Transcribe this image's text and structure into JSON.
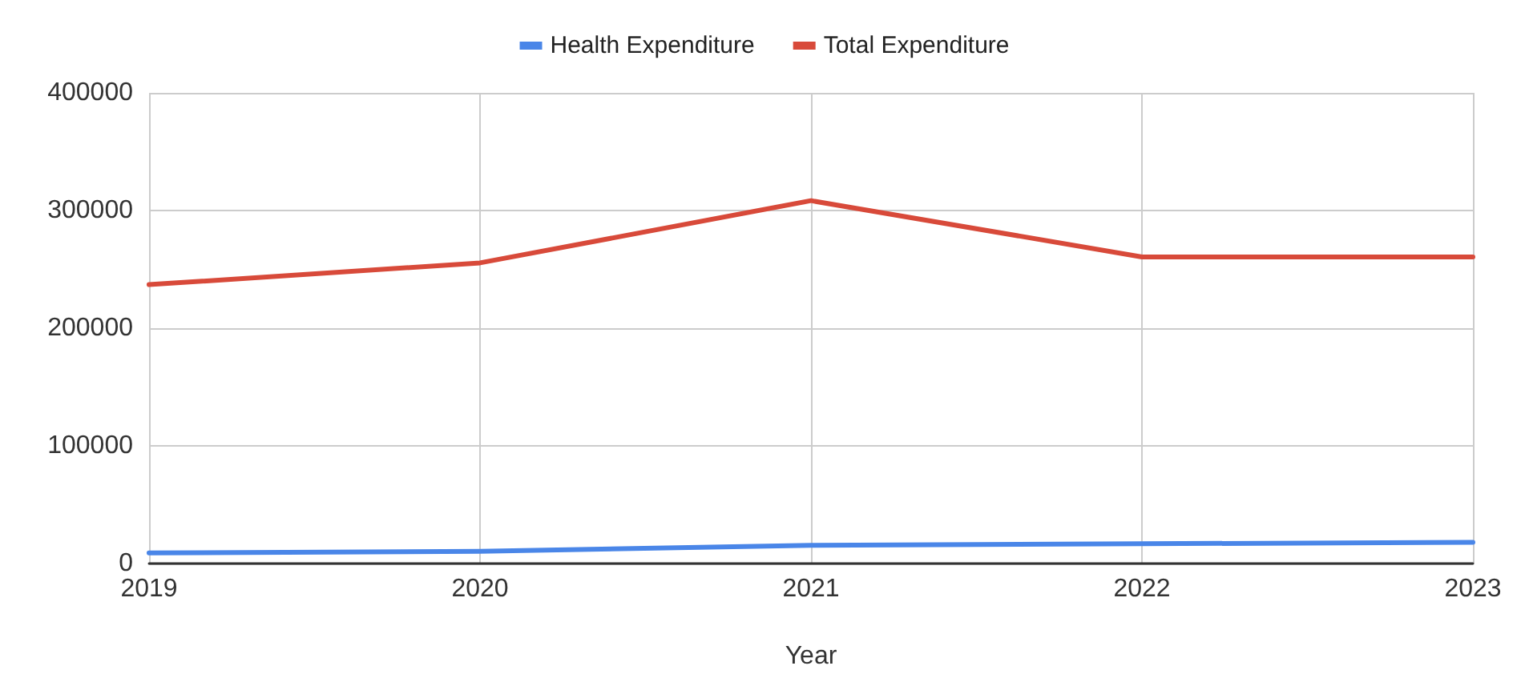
{
  "chart_data": {
    "type": "line",
    "xlabel": "Year",
    "x": [
      2019,
      2020,
      2021,
      2022,
      2023
    ],
    "series": [
      {
        "name": "Health Expenditure",
        "color": "#4a86e8",
        "values": [
          9000,
          10300,
          15500,
          16800,
          18000
        ]
      },
      {
        "name": "Total Expenditure",
        "color": "#d84a3a",
        "values": [
          237000,
          255500,
          308400,
          260600,
          260600
        ]
      }
    ],
    "xlim": [
      2019,
      2023
    ],
    "xticks": [
      2019,
      2020,
      2021,
      2022,
      2023
    ],
    "ylim": [
      0,
      400000
    ],
    "yticks": [
      0,
      100000,
      200000,
      300000,
      400000
    ],
    "grid": true,
    "legend": "top",
    "marker": "none",
    "line_style": "solid"
  }
}
